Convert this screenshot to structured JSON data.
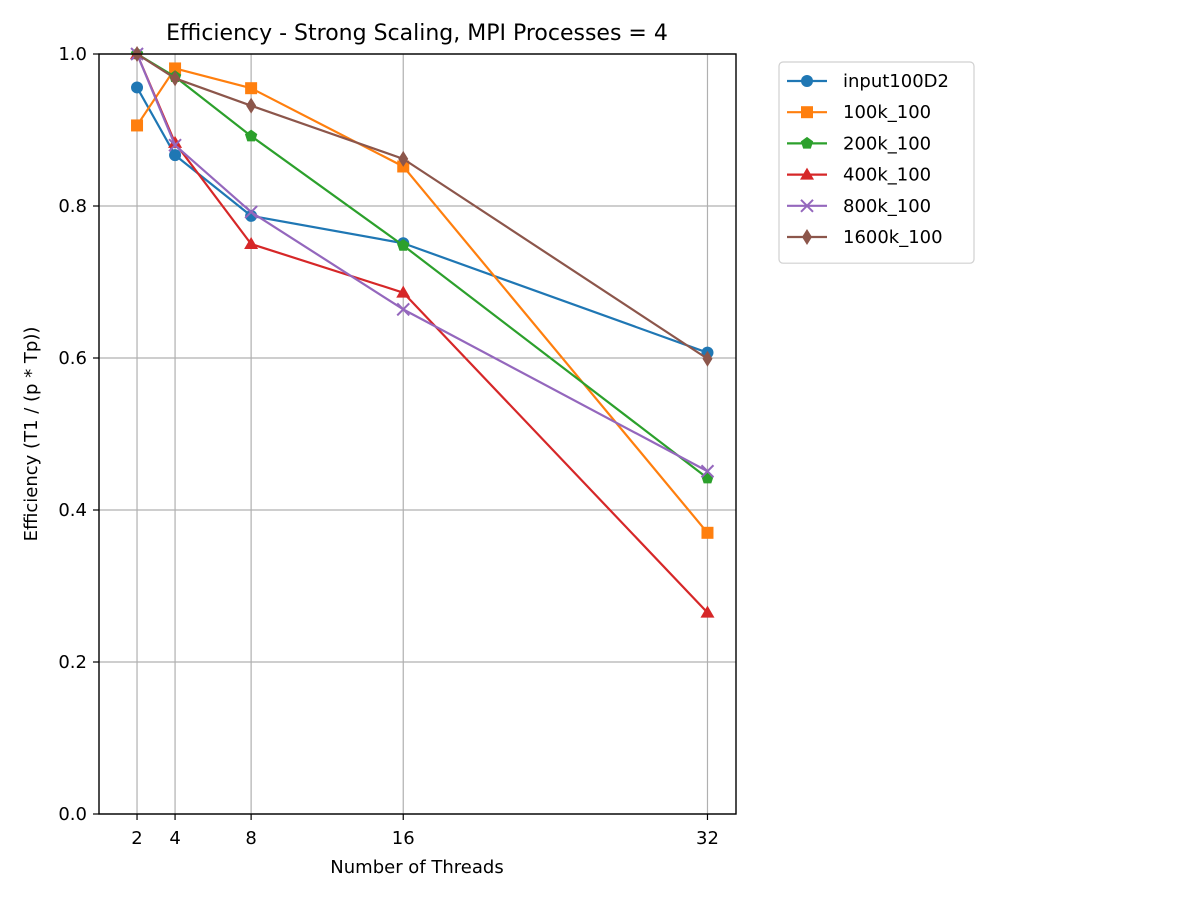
{
  "chart_data": {
    "type": "line",
    "title": "Efficiency - Strong Scaling, MPI Processes = 4",
    "xlabel": "Number of Threads",
    "ylabel": "Efficiency (T1 / (p * Tp))",
    "x": [
      2,
      4,
      8,
      16,
      32
    ],
    "x_ticks": [
      2,
      4,
      8,
      16,
      32
    ],
    "xlim": [
      0,
      33.5
    ],
    "ylim": [
      0.0,
      1.0
    ],
    "y_ticks": [
      "0.0",
      "0.2",
      "0.4",
      "0.6",
      "0.8",
      "1.0"
    ],
    "grid": true,
    "legend_position": "outside-right-top",
    "series": [
      {
        "name": "input100D2",
        "color": "#1f77b4",
        "marker": "circle",
        "values": [
          0.956,
          0.867,
          0.787,
          0.751,
          0.607
        ]
      },
      {
        "name": "100k_100",
        "color": "#ff7f0e",
        "marker": "square",
        "values": [
          0.906,
          0.981,
          0.955,
          0.852,
          0.37
        ]
      },
      {
        "name": "200k_100",
        "color": "#2ca02c",
        "marker": "pentagon",
        "values": [
          1.0,
          0.97,
          0.892,
          0.748,
          0.442
        ]
      },
      {
        "name": "400k_100",
        "color": "#d62728",
        "marker": "triangle",
        "values": [
          1.0,
          0.883,
          0.75,
          0.686,
          0.265
        ]
      },
      {
        "name": "800k_100",
        "color": "#9467bd",
        "marker": "x",
        "values": [
          1.0,
          0.88,
          0.792,
          0.664,
          0.451
        ]
      },
      {
        "name": "1600k_100",
        "color": "#8c564b",
        "marker": "diamond",
        "values": [
          1.0,
          0.968,
          0.932,
          0.862,
          0.599
        ]
      }
    ]
  }
}
